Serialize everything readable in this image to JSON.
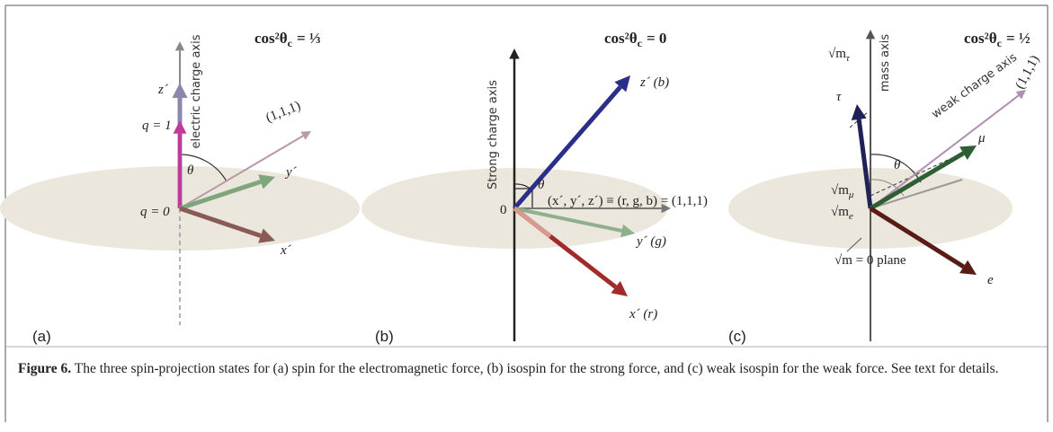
{
  "panels": [
    {
      "title": {
        "main": "cos²θ",
        "sub": "c",
        "tail": "= ⅓"
      },
      "axis_label": "electric charge axis",
      "labels": {
        "z": "z´",
        "q1": "q = 1",
        "q0": "q = 0",
        "diag": "(1,1,1)",
        "theta": "θ",
        "y": "y´",
        "x": "x´"
      },
      "panel_label": "(a)"
    },
    {
      "title": {
        "main": "cos²θ",
        "sub": "c",
        "tail": "= 0"
      },
      "axis_label": "Strong charge axis",
      "labels": {
        "z": "z´ (b)",
        "theta": "θ",
        "origin": "0",
        "diag": "(x´, y´, z´) ≡ (r, g, b) = (1,1,1)",
        "y": "y´ (g)",
        "x": "x´ (r)"
      },
      "panel_label": "(b)"
    },
    {
      "title": {
        "main": "cos²θ",
        "sub": "c",
        "tail": "= ½"
      },
      "axis_label": "mass axis",
      "labels": {
        "sqrt_m_tau": {
          "base": "√m",
          "sub": "τ"
        },
        "tau": "τ",
        "weak_axis": "weak charge axis",
        "diag": "(1,1,1)",
        "theta": "θ",
        "mu": "μ",
        "sqrt_m_mu": {
          "base": "√m",
          "sub": "μ"
        },
        "sqrt_m_e": {
          "base": "√m",
          "sub": "e"
        },
        "e": "e",
        "plane": "√m = 0 plane"
      },
      "panel_label": "(c)"
    }
  ],
  "caption": {
    "label": "Figure 6.",
    "text": "The three spin-projection states for (a) spin for the electromagnetic force, (b) isospin for the strong force, and (c) weak isospin for the weak force. See text for details."
  }
}
